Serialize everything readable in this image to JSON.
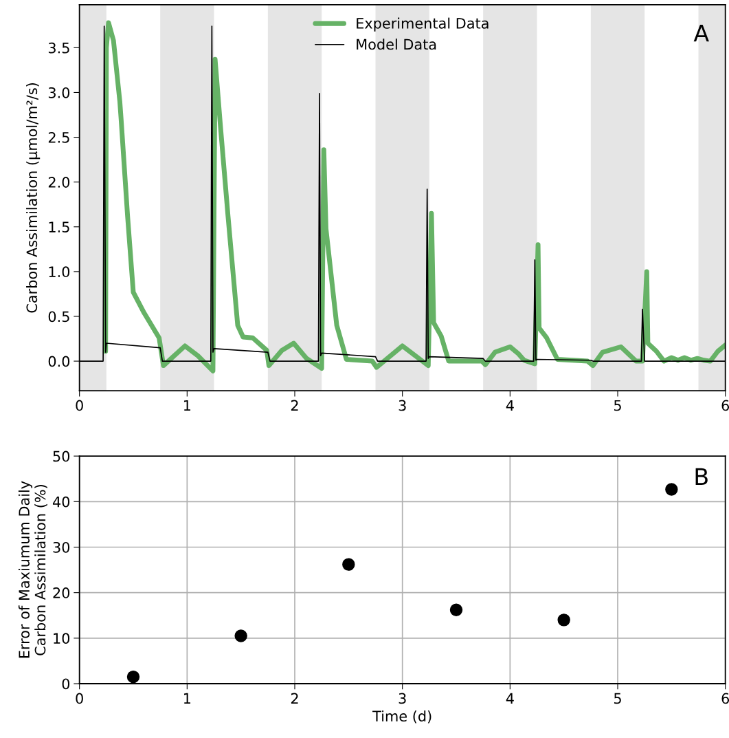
{
  "chart_data": [
    {
      "type": "line",
      "ylabel": "Carbon Assimilation (μmol/m²/s)",
      "xlim": [
        0,
        6
      ],
      "ylim": [
        -0.33,
        3.98
      ],
      "xticks": [
        0,
        1,
        2,
        3,
        4,
        5,
        6
      ],
      "yticks": [
        {
          "value": 0,
          "label": "0.0"
        },
        0.5,
        {
          "value": 1,
          "label": "1.0"
        },
        1.5,
        {
          "value": 2,
          "label": "2.0"
        },
        2.5,
        {
          "value": 3,
          "label": "3.0"
        },
        3.5
      ],
      "grid": false,
      "legend": "top",
      "annotations": [
        "A"
      ],
      "bands": [
        {
          "axis": "x",
          "from": 0,
          "to": 0.25,
          "color": "#e5e5e5"
        },
        {
          "axis": "x",
          "from": 0.75,
          "to": 1.25,
          "color": "#e5e5e5"
        },
        {
          "axis": "x",
          "from": 1.75,
          "to": 2.25,
          "color": "#e5e5e5"
        },
        {
          "axis": "x",
          "from": 2.75,
          "to": 3.25,
          "color": "#e5e5e5"
        },
        {
          "axis": "x",
          "from": 3.75,
          "to": 4.25,
          "color": "#e5e5e5"
        },
        {
          "axis": "x",
          "from": 4.75,
          "to": 5.25,
          "color": "#e5e5e5"
        },
        {
          "axis": "x",
          "from": 5.75,
          "to": 6,
          "color": "#e5e5e5"
        }
      ],
      "series": [
        {
          "name": "Experimental Data",
          "color": "#66b266",
          "x": [
            0.243,
            0.25,
            0.27,
            0.316,
            0.375,
            0.387,
            0.447,
            0.5,
            0.6,
            0.74,
            0.78,
            0.98,
            1.1,
            1.24,
            1.26,
            1.31,
            1.38,
            1.47,
            1.52,
            1.61,
            1.74,
            1.76,
            1.88,
            1.99,
            2.11,
            2.25,
            2.27,
            2.29,
            2.39,
            2.48,
            2.72,
            2.76,
            3.0,
            3.24,
            3.27,
            3.29,
            3.36,
            3.43,
            3.74,
            3.77,
            3.86,
            4.0,
            4.08,
            4.13,
            4.23,
            4.26,
            4.27,
            4.34,
            4.44,
            4.72,
            4.77,
            4.86,
            5.03,
            5.17,
            5.23,
            5.27,
            5.28,
            5.36,
            5.43,
            5.5,
            5.56,
            5.62,
            5.68,
            5.74,
            5.8,
            5.86,
            5.93,
            6.0
          ],
          "values": [
            0.11,
            3.5,
            3.78,
            3.58,
            2.9,
            2.7,
            1.62,
            0.77,
            0.54,
            0.26,
            -0.05,
            0.17,
            0.06,
            -0.11,
            3.37,
            2.62,
            1.62,
            0.4,
            0.27,
            0.26,
            0.12,
            -0.05,
            0.12,
            0.2,
            0.03,
            -0.08,
            2.36,
            1.48,
            0.4,
            0.02,
            0.0,
            -0.07,
            0.17,
            -0.05,
            1.65,
            0.43,
            0.28,
            0.0,
            0.0,
            -0.04,
            0.1,
            0.16,
            0.08,
            0.01,
            -0.03,
            1.3,
            0.37,
            0.26,
            0.02,
            0.0,
            -0.05,
            0.1,
            0.16,
            0.0,
            0.0,
            1.0,
            0.2,
            0.11,
            0.0,
            0.04,
            0.01,
            0.04,
            0.01,
            0.03,
            0.01,
            0.0,
            0.11,
            0.18
          ]
        },
        {
          "name": "Model Data",
          "color": "#000000",
          "x": [
            0,
            0.22,
            0.23,
            0.243,
            0.25,
            0.75,
            0.77,
            1.22,
            1.23,
            1.24,
            1.25,
            1.75,
            1.77,
            2.22,
            2.23,
            2.24,
            2.25,
            2.75,
            2.77,
            3.22,
            3.23,
            3.24,
            3.25,
            3.75,
            3.77,
            4.22,
            4.23,
            4.24,
            4.25,
            4.75,
            4.77,
            5.22,
            5.23,
            5.25,
            6.0
          ],
          "values": [
            0,
            0,
            3.74,
            0.1,
            0.2,
            0.15,
            0,
            0,
            3.74,
            0.1,
            0.14,
            0.1,
            0,
            0,
            2.99,
            0.06,
            0.09,
            0.05,
            0,
            0,
            1.92,
            0.03,
            0.05,
            0.03,
            0,
            0,
            1.13,
            0.01,
            0.02,
            0.01,
            0,
            0,
            0.58,
            0,
            0
          ]
        }
      ]
    },
    {
      "type": "scatter",
      "xlabel": "Time (d)",
      "ylabel": "Error of Maxiumum Daily\nCarbon Assimilation (%)",
      "xlim": [
        0,
        6
      ],
      "ylim": [
        0,
        50
      ],
      "xticks": [
        0,
        1,
        2,
        3,
        4,
        5,
        6
      ],
      "yticks": [
        0,
        10,
        20,
        30,
        40,
        50
      ],
      "grid": true,
      "marker": "circle",
      "annotations": [
        "B"
      ],
      "series": [
        {
          "color": "#000000",
          "x": [
            0.5,
            1.5,
            2.5,
            3.5,
            4.5,
            5.5
          ],
          "values": [
            1.5,
            10.5,
            26.2,
            16.2,
            14.0,
            42.7
          ]
        }
      ]
    }
  ]
}
